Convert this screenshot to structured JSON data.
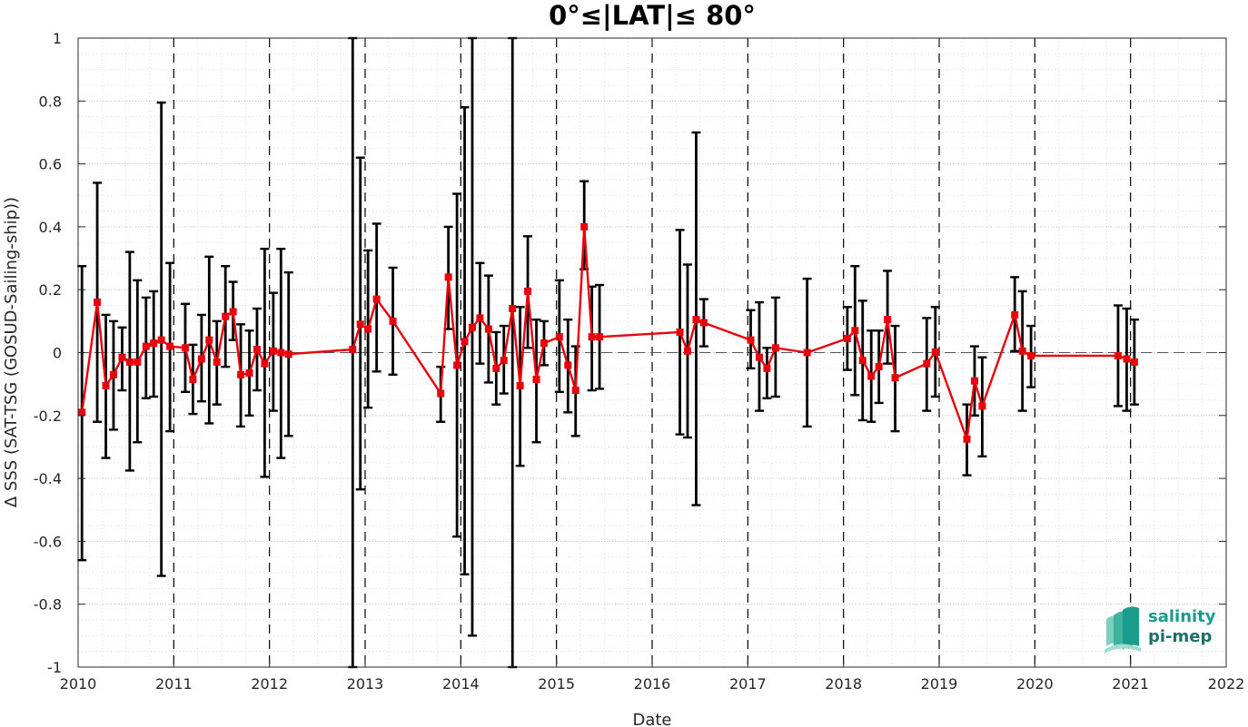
{
  "chart_data": {
    "type": "line",
    "title": "0°≤|LAT|≤ 80°",
    "xlabel": "Date",
    "ylabel": "Δ SSS (SAT-TSG (GOSUD-Sailing-ship))",
    "xlim": [
      2010,
      2022
    ],
    "ylim": [
      -1,
      1
    ],
    "x_ticks": [
      "2010",
      "2011",
      "2012",
      "2013",
      "2014",
      "2015",
      "2016",
      "2017",
      "2018",
      "2019",
      "2020",
      "2021",
      "2022"
    ],
    "y_ticks": [
      "1",
      "0.8",
      "0.6",
      "0.4",
      "0.2",
      "0",
      "-0.2",
      "-0.4",
      "-0.6",
      "-0.8",
      "-1"
    ],
    "grid": true,
    "zero_line": 0,
    "year_boundaries": [
      2011,
      2012,
      2013,
      2014,
      2015,
      2016,
      2017,
      2018,
      2019,
      2020,
      2021
    ],
    "colors": {
      "series": "#e8000b",
      "errorbar": "#000000",
      "logo": "#1a9c8c"
    },
    "series": [
      {
        "x": [
          2010.04,
          2010.2,
          2010.29,
          2010.37,
          2010.46,
          2010.54,
          2010.62,
          2010.71,
          2010.79,
          2010.87,
          2010.96,
          2011.12,
          2011.2,
          2011.29,
          2011.37,
          2011.45,
          2011.54,
          2011.62,
          2011.7,
          2011.79,
          2011.87,
          2011.95,
          2012.04,
          2012.12,
          2012.2,
          2012.87,
          2012.95,
          2013.03,
          2013.12,
          2013.29,
          2013.79,
          2013.87,
          2013.96,
          2014.04,
          2014.12,
          2014.2,
          2014.29,
          2014.37,
          2014.45,
          2014.54,
          2014.62,
          2014.7,
          2014.79,
          2014.87,
          2015.03,
          2015.12,
          2015.2,
          2015.29,
          2015.37,
          2015.45,
          2016.29,
          2016.37,
          2016.46,
          2016.54,
          2017.03,
          2017.12,
          2017.2,
          2017.29,
          2017.62,
          2018.04,
          2018.12,
          2018.2,
          2018.29,
          2018.37,
          2018.46,
          2018.54,
          2018.87,
          2018.96,
          2019.29,
          2019.37,
          2019.45,
          2019.79,
          2019.87,
          2019.96,
          2020.87,
          2020.96,
          2021.04
        ],
        "y": [
          -0.19,
          0.16,
          -0.105,
          -0.07,
          -0.015,
          -0.03,
          -0.03,
          0.02,
          0.03,
          0.04,
          0.02,
          0.015,
          -0.085,
          -0.02,
          0.04,
          -0.03,
          0.115,
          0.13,
          -0.07,
          -0.065,
          0.01,
          -0.035,
          0.005,
          0,
          -0.005,
          0.01,
          0.09,
          0.075,
          0.17,
          0.1,
          -0.13,
          0.24,
          -0.04,
          0.035,
          0.08,
          0.11,
          0.075,
          -0.05,
          -0.025,
          0.14,
          -0.105,
          0.195,
          -0.085,
          0.03,
          0.05,
          -0.04,
          -0.12,
          0.4,
          0.05,
          0.05,
          0.065,
          0.005,
          0.105,
          0.095,
          0.04,
          -0.015,
          -0.05,
          0.015,
          0,
          0.045,
          0.07,
          -0.025,
          -0.075,
          -0.045,
          0.105,
          -0.08,
          -0.035,
          0.002,
          -0.275,
          -0.09,
          -0.17,
          0.12,
          0.005,
          -0.01,
          -0.01,
          -0.02,
          -0.03
        ],
        "err_low": [
          -0.66,
          -0.22,
          -0.335,
          -0.245,
          -0.12,
          -0.375,
          -0.285,
          -0.145,
          -0.14,
          -0.71,
          -0.25,
          -0.125,
          -0.195,
          -0.155,
          -0.225,
          -0.165,
          -0.045,
          0.04,
          -0.235,
          -0.2,
          -0.12,
          -0.395,
          -0.185,
          -0.335,
          -0.265,
          -1,
          -0.435,
          -0.175,
          -0.06,
          -0.07,
          -0.22,
          0.075,
          -0.585,
          -0.705,
          -0.9,
          -0.035,
          -0.095,
          -0.165,
          -0.13,
          -1,
          -0.36,
          0.015,
          -0.285,
          -0.04,
          -0.125,
          -0.19,
          -0.265,
          0.265,
          -0.12,
          -0.115,
          -0.26,
          -0.27,
          -0.485,
          0.02,
          -0.05,
          -0.185,
          -0.145,
          -0.14,
          -0.235,
          -0.055,
          -0.135,
          -0.215,
          -0.22,
          -0.16,
          -0.035,
          -0.25,
          -0.185,
          -0.14,
          -0.39,
          -0.2,
          -0.33,
          0.005,
          -0.185,
          -0.11,
          -0.17,
          -0.185,
          -0.165
        ],
        "err_high": [
          0.275,
          0.54,
          0.12,
          0.1,
          0.08,
          0.32,
          0.23,
          0.175,
          0.195,
          0.795,
          0.285,
          0.155,
          0.025,
          0.12,
          0.305,
          0.1,
          0.275,
          0.225,
          0.09,
          0.07,
          0.14,
          0.33,
          0.19,
          0.33,
          0.255,
          1,
          0.62,
          0.325,
          0.41,
          0.27,
          -0.045,
          0.4,
          0.505,
          0.78,
          1,
          0.285,
          0.245,
          0.065,
          0.085,
          1,
          0.145,
          0.37,
          0.105,
          0.1,
          0.23,
          0.105,
          0.02,
          0.545,
          0.21,
          0.215,
          0.39,
          0.28,
          0.7,
          0.17,
          0.135,
          0.16,
          0.015,
          0.175,
          0.235,
          0.145,
          0.275,
          0.165,
          0.07,
          0.07,
          0.26,
          0.085,
          0.11,
          0.145,
          -0.165,
          0.02,
          -0.015,
          0.24,
          0.195,
          0.085,
          0.15,
          0.14,
          0.105
        ]
      }
    ]
  },
  "logo": {
    "line1": "salinity",
    "line2": "pi-mep"
  }
}
